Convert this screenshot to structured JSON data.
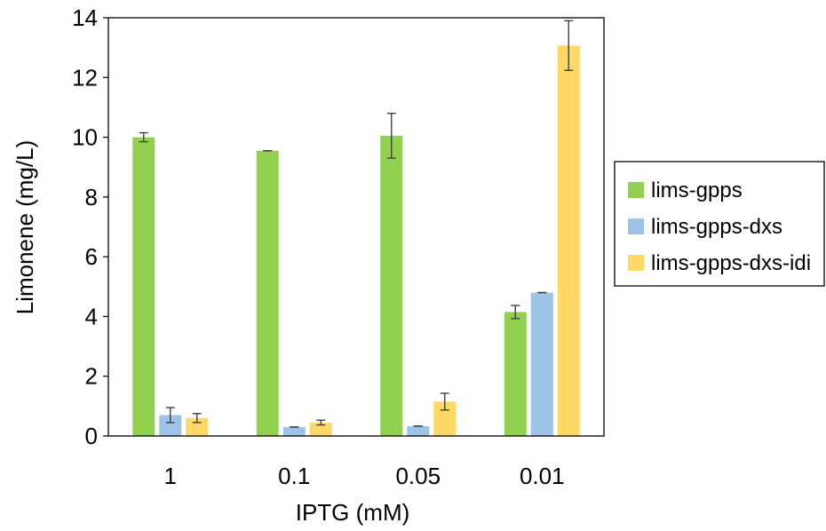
{
  "chart_data": {
    "type": "bar",
    "xlabel": "IPTG (mM)",
    "ylabel": "Limonene (mg/L)",
    "ylim": [
      0,
      14
    ],
    "yticks": [
      0,
      2,
      4,
      6,
      8,
      10,
      12,
      14
    ],
    "categories": [
      "1",
      "0.1",
      "0.05",
      "0.01"
    ],
    "legend_position": "right",
    "grid": false,
    "series": [
      {
        "name": "lims-gpps",
        "color": "#92d050",
        "values": [
          10.0,
          9.55,
          10.05,
          4.15
        ],
        "errors": [
          0.15,
          0.0,
          0.75,
          0.22
        ]
      },
      {
        "name": "lims-gpps-dxs",
        "color": "#9dc3e6",
        "values": [
          0.7,
          0.3,
          0.33,
          4.8
        ],
        "errors": [
          0.25,
          0.0,
          0.0,
          0.0
        ]
      },
      {
        "name": "lims-gpps-dxs-idi",
        "color": "#ffd966",
        "values": [
          0.6,
          0.45,
          1.15,
          13.07
        ],
        "errors": [
          0.15,
          0.08,
          0.28,
          0.83
        ]
      }
    ]
  }
}
